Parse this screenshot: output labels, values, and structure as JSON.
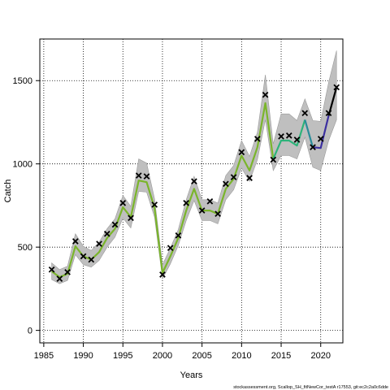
{
  "chart_data": {
    "type": "line",
    "title": "",
    "xlabel": "Years",
    "ylabel": "Catch",
    "xlim": [
      1984.5,
      2022.8
    ],
    "ylim": [
      -75,
      1750
    ],
    "xticks": [
      1985,
      1990,
      1995,
      2000,
      2005,
      2010,
      2015,
      2020
    ],
    "yticks": [
      0,
      500,
      1000,
      1500
    ],
    "grid": true,
    "footnote": "stockassessment.org, Scallop_SH_fitNewCor_testA r17553, git:ec2c2a0c6dde",
    "series": [
      {
        "role": "observed",
        "marker": "x",
        "points": [
          [
            1986,
            365
          ],
          [
            1987,
            310
          ],
          [
            1988,
            350
          ],
          [
            1989,
            535
          ],
          [
            1990,
            445
          ],
          [
            1991,
            425
          ],
          [
            1992,
            520
          ],
          [
            1993,
            580
          ],
          [
            1994,
            635
          ],
          [
            1995,
            765
          ],
          [
            1996,
            675
          ],
          [
            1997,
            930
          ],
          [
            1998,
            925
          ],
          [
            1999,
            755
          ],
          [
            2000,
            335
          ],
          [
            2001,
            495
          ],
          [
            2002,
            570
          ],
          [
            2003,
            765
          ],
          [
            2004,
            895
          ],
          [
            2005,
            720
          ],
          [
            2006,
            775
          ],
          [
            2007,
            700
          ],
          [
            2008,
            880
          ],
          [
            2009,
            920
          ],
          [
            2010,
            1070
          ],
          [
            2011,
            915
          ],
          [
            2012,
            1150
          ],
          [
            2013,
            1415
          ],
          [
            2014,
            1025
          ],
          [
            2015,
            1165
          ],
          [
            2016,
            1170
          ],
          [
            2017,
            1145
          ],
          [
            2018,
            1305
          ],
          [
            2019,
            1100
          ],
          [
            2020,
            1150
          ],
          [
            2021,
            1305
          ],
          [
            2022,
            1460
          ]
        ]
      },
      {
        "role": "estimate",
        "x": [
          1986,
          1987,
          1988,
          1989,
          1990,
          1991,
          1992,
          1993,
          1994,
          1995,
          1996,
          1997,
          1998,
          1999,
          2000,
          2001,
          2002,
          2003,
          2004,
          2005,
          2006,
          2007,
          2008,
          2009,
          2010,
          2011,
          2012,
          2013,
          2014,
          2015,
          2016,
          2017,
          2018,
          2019,
          2020,
          2021,
          2022
        ],
        "y": [
          355,
          320,
          340,
          505,
          445,
          425,
          470,
          555,
          610,
          740,
          680,
          900,
          890,
          735,
          345,
          445,
          555,
          720,
          850,
          720,
          720,
          700,
          850,
          910,
          1050,
          960,
          1100,
          1365,
          1030,
          1140,
          1140,
          1110,
          1265,
          1100,
          1095,
          1290,
          1460
        ],
        "lower": [
          305,
          280,
          300,
          455,
          395,
          380,
          420,
          500,
          560,
          675,
          615,
          835,
          830,
          680,
          310,
          400,
          510,
          660,
          780,
          660,
          660,
          640,
          785,
          845,
          975,
          895,
          1025,
          1265,
          960,
          1050,
          1050,
          1030,
          1160,
          980,
          960,
          1140,
          1265
        ],
        "upper": [
          405,
          365,
          385,
          580,
          505,
          480,
          530,
          610,
          670,
          810,
          745,
          1030,
          1005,
          790,
          395,
          495,
          605,
          785,
          925,
          785,
          785,
          765,
          930,
          990,
          1140,
          1045,
          1190,
          1535,
          1120,
          1300,
          1300,
          1260,
          1390,
          1260,
          1255,
          1490,
          1680
        ],
        "segment_colors": [
          {
            "from": 1986,
            "to": 2014,
            "color": "#7ab52b"
          },
          {
            "from": 2014,
            "to": 2018,
            "color": "#2db37a"
          },
          {
            "from": 2018,
            "to": 2019,
            "color": "#2a8c99"
          },
          {
            "from": 2019,
            "to": 2021,
            "color": "#3b2fa0"
          },
          {
            "from": 2021,
            "to": 2022,
            "color": "#000000"
          }
        ]
      }
    ],
    "colors": {
      "band": "#bfbfbf",
      "band_edge": "#9a9a9a",
      "grid": "#000000",
      "marker": "#000000"
    }
  }
}
